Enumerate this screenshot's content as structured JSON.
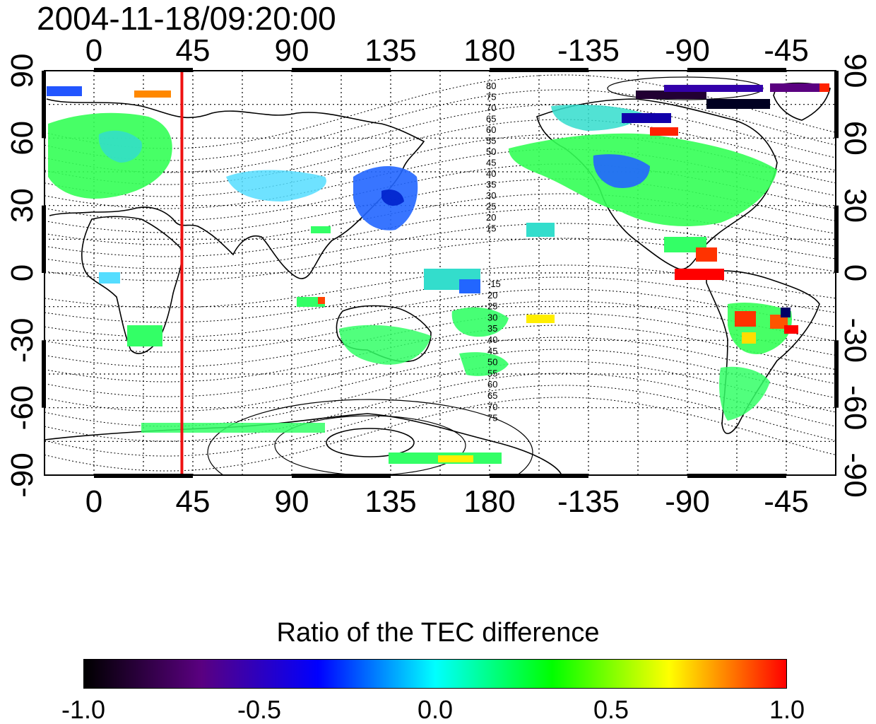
{
  "timestamp": "2004-11-18/09:20:00",
  "map": {
    "top_longitude_labels": [
      "0",
      "45",
      "90",
      "135",
      "180",
      "-135",
      "-90",
      "-45"
    ],
    "bottom_longitude_labels": [
      "0",
      "45",
      "90",
      "135",
      "180",
      "-135",
      "-90",
      "-45"
    ],
    "left_latitude_labels": [
      "90",
      "60",
      "30",
      "0",
      "-30",
      "-60",
      "-90"
    ],
    "right_latitude_labels": [
      "90",
      "60",
      "30",
      "0",
      "-30",
      "-60",
      "-90"
    ],
    "grid": true,
    "marker_line": {
      "longitude": 40,
      "color": "#ee1111"
    },
    "contour_labels_north": [
      "80",
      "75",
      "70",
      "65",
      "60",
      "55",
      "50",
      "45",
      "40",
      "35",
      "30",
      "25",
      "20",
      "15"
    ],
    "contour_labels_south": [
      "-15",
      "20",
      "25",
      "30",
      "35",
      "40",
      "45",
      "50",
      "55",
      "60",
      "65",
      "70",
      "75"
    ]
  },
  "colorbar": {
    "title": "Ratio of the TEC difference",
    "tick_labels": [
      "-1.0",
      "-0.5",
      "0.0",
      "0.5",
      "1.0"
    ],
    "range": [
      -1.0,
      1.0
    ],
    "colors": [
      "#000000",
      "#5a0080",
      "#0000ff",
      "#00ffff",
      "#00ff00",
      "#ffff00",
      "#ff0000"
    ]
  }
}
